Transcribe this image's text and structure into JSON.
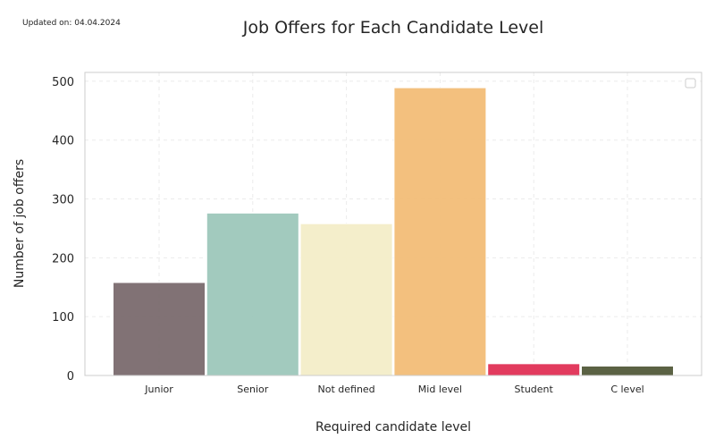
{
  "updated_text": "Updated on: 04.04.2024",
  "chart_data": {
    "type": "bar",
    "title": "Job Offers for Each Candidate Level",
    "xlabel": "Required candidate level",
    "ylabel": "Number of job offers",
    "categories": [
      "Junior",
      "Senior",
      "Not defined",
      "Mid level",
      "Student",
      "C level"
    ],
    "values": [
      158,
      276,
      258,
      489,
      20,
      16
    ],
    "colors": [
      "#7a6a6e",
      "#9dc7bb",
      "#f3edc8",
      "#f2bd77",
      "#e03055",
      "#525a3a"
    ],
    "ylim": [
      0,
      515
    ],
    "yticks": [
      0,
      100,
      200,
      300,
      400,
      500
    ],
    "grid": true,
    "legend": "top-right"
  }
}
